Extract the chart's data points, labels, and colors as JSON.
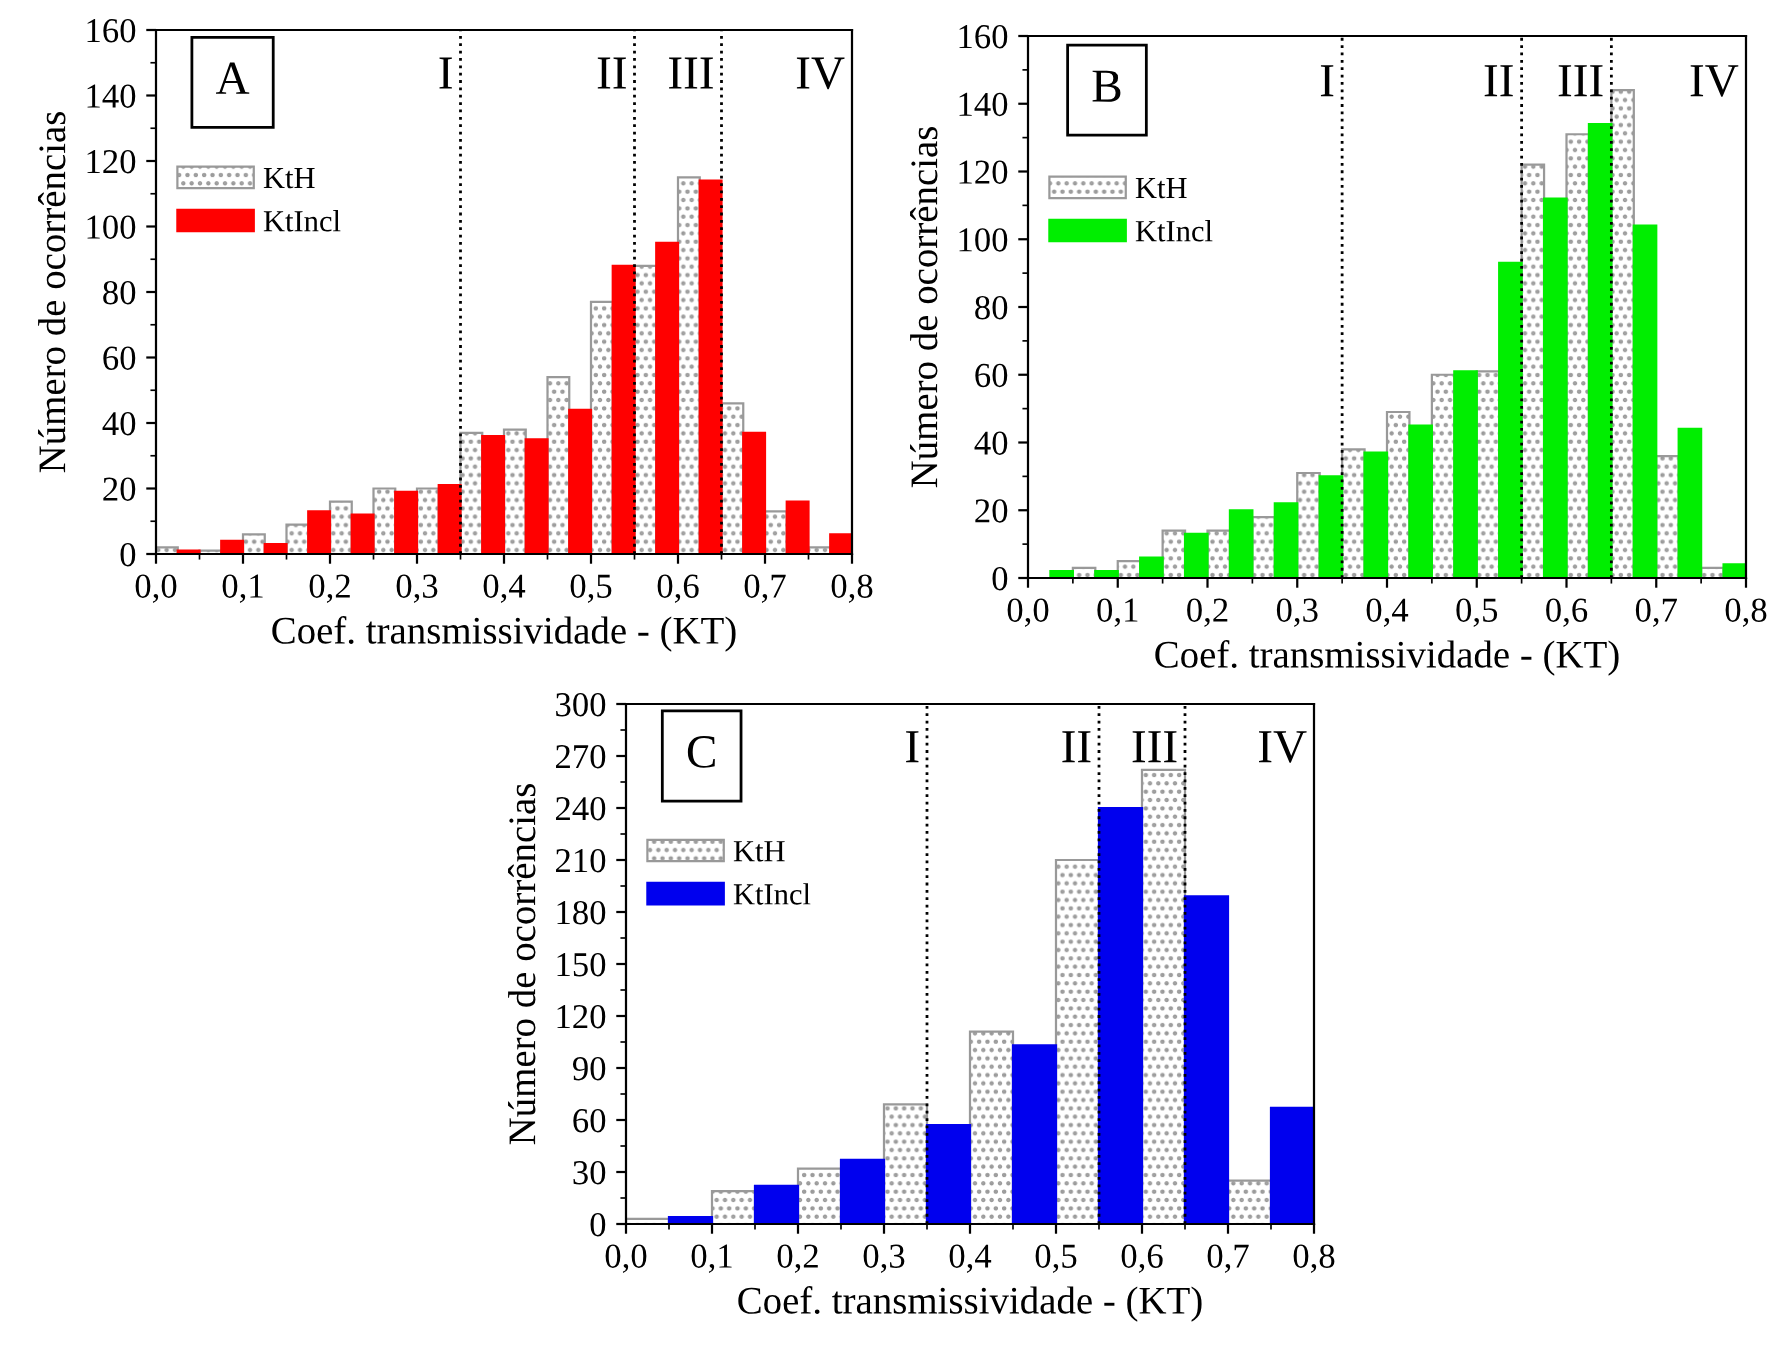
{
  "chart_data": [
    {
      "type": "bar",
      "title": "A",
      "xlabel": "Coef. transmissividade - (KT)",
      "ylabel": "Número de ocorrências",
      "series": [
        {
          "name": "KtH",
          "color": "#999999",
          "x": [
            0.0125,
            0.0625,
            0.1125,
            0.1625,
            0.2125,
            0.2625,
            0.3125,
            0.3625,
            0.4125,
            0.4625,
            0.5125,
            0.5625,
            0.6125,
            0.6625,
            0.7125,
            0.7625
          ],
          "values": [
            2,
            1,
            6,
            9,
            16,
            20,
            20,
            37,
            38,
            54,
            77,
            88,
            115,
            46,
            13,
            2
          ]
        },
        {
          "name": "KtIncl",
          "color": "#ff0000",
          "x": [
            0.0375,
            0.0875,
            0.1375,
            0.1875,
            0.2375,
            0.2875,
            0.3375,
            0.3875,
            0.4375,
            0.4875,
            0.5375,
            0.5875,
            0.6375,
            0.6875,
            0.7375,
            0.7875
          ],
          "values": [
            1,
            4,
            3,
            13,
            12,
            19,
            21,
            36,
            35,
            44,
            88,
            95,
            114,
            37,
            16,
            6
          ]
        }
      ],
      "xlim": [
        0,
        0.8
      ],
      "xticks": [
        {
          "value": 0,
          "label": "0,0"
        },
        {
          "value": 0.1,
          "label": "0,1"
        },
        {
          "value": 0.2,
          "label": "0,2"
        },
        {
          "value": 0.3,
          "label": "0,3"
        },
        {
          "value": 0.4,
          "label": "0,4"
        },
        {
          "value": 0.5,
          "label": "0,5"
        },
        {
          "value": 0.6,
          "label": "0,6"
        },
        {
          "value": 0.7,
          "label": "0,7"
        },
        {
          "value": 0.8,
          "label": "0,8"
        }
      ],
      "ylim": [
        0,
        160
      ],
      "yticks": [
        0,
        20,
        40,
        60,
        80,
        100,
        120,
        140,
        160
      ],
      "ref_lines": [
        {
          "axis": "x",
          "value": 0.35,
          "line_style": "dotted",
          "color": "#000000"
        },
        {
          "axis": "x",
          "value": 0.55,
          "line_style": "dotted",
          "color": "#000000"
        },
        {
          "axis": "x",
          "value": 0.65,
          "line_style": "dotted",
          "color": "#000000"
        }
      ],
      "annotations": [
        "I",
        "II",
        "III",
        "IV"
      ],
      "legend": "top left"
    },
    {
      "type": "bar",
      "title": "B",
      "xlabel": "Coef. transmissividade - (KT)",
      "ylabel": "Número de ocorrências",
      "series": [
        {
          "name": "KtH",
          "color": "#999999",
          "x": [
            0.0125,
            0.0625,
            0.1125,
            0.1625,
            0.2125,
            0.2625,
            0.3125,
            0.3625,
            0.4125,
            0.4625,
            0.5125,
            0.5625,
            0.6125,
            0.6625,
            0.7125,
            0.7625
          ],
          "values": [
            0,
            3,
            5,
            14,
            14,
            18,
            31,
            38,
            49,
            60,
            61,
            122,
            131,
            144,
            36,
            3
          ]
        },
        {
          "name": "KtIncl",
          "color": "#00ee00",
          "x": [
            0.0375,
            0.0875,
            0.1375,
            0.1875,
            0.2375,
            0.2875,
            0.3375,
            0.3875,
            0.4375,
            0.4875,
            0.5375,
            0.5875,
            0.6375,
            0.6875,
            0.7375,
            0.7875
          ],
          "values": [
            2,
            2,
            6,
            13,
            20,
            22,
            30,
            37,
            45,
            61,
            93,
            112,
            134,
            104,
            44,
            4
          ]
        }
      ],
      "xlim": [
        0,
        0.8
      ],
      "xticks": [
        {
          "value": 0,
          "label": "0,0"
        },
        {
          "value": 0.1,
          "label": "0,1"
        },
        {
          "value": 0.2,
          "label": "0,2"
        },
        {
          "value": 0.3,
          "label": "0,3"
        },
        {
          "value": 0.4,
          "label": "0,4"
        },
        {
          "value": 0.5,
          "label": "0,5"
        },
        {
          "value": 0.6,
          "label": "0,6"
        },
        {
          "value": 0.7,
          "label": "0,7"
        },
        {
          "value": 0.8,
          "label": "0,8"
        }
      ],
      "ylim": [
        0,
        160
      ],
      "yticks": [
        0,
        20,
        40,
        60,
        80,
        100,
        120,
        140,
        160
      ],
      "ref_lines": [
        {
          "axis": "x",
          "value": 0.35,
          "line_style": "dotted",
          "color": "#000000"
        },
        {
          "axis": "x",
          "value": 0.55,
          "line_style": "dotted",
          "color": "#000000"
        },
        {
          "axis": "x",
          "value": 0.65,
          "line_style": "dotted",
          "color": "#000000"
        }
      ],
      "annotations": [
        "I",
        "II",
        "III",
        "IV"
      ],
      "legend": "top left"
    },
    {
      "type": "bar",
      "title": "C",
      "xlabel": "Coef. transmissividade - (KT)",
      "ylabel": "Número de ocorrências",
      "series": [
        {
          "name": "KtH",
          "color": "#999999",
          "x": [
            0.025,
            0.125,
            0.225,
            0.325,
            0.425,
            0.525,
            0.625,
            0.725
          ],
          "values": [
            3,
            19,
            32,
            69,
            111,
            210,
            262,
            25
          ]
        },
        {
          "name": "KtIncl",
          "color": "#0000ee",
          "x": [
            0.075,
            0.175,
            0.275,
            0.375,
            0.475,
            0.575,
            0.675,
            0.775
          ],
          "values": [
            4,
            22,
            37,
            57,
            103,
            240,
            189,
            67
          ]
        }
      ],
      "xlim": [
        0,
        0.8
      ],
      "xticks": [
        {
          "value": 0,
          "label": "0,0"
        },
        {
          "value": 0.1,
          "label": "0,1"
        },
        {
          "value": 0.2,
          "label": "0,2"
        },
        {
          "value": 0.3,
          "label": "0,3"
        },
        {
          "value": 0.4,
          "label": "0,4"
        },
        {
          "value": 0.5,
          "label": "0,5"
        },
        {
          "value": 0.6,
          "label": "0,6"
        },
        {
          "value": 0.7,
          "label": "0,7"
        },
        {
          "value": 0.8,
          "label": "0,8"
        }
      ],
      "ylim": [
        0,
        300
      ],
      "yticks": [
        0,
        30,
        60,
        90,
        120,
        150,
        180,
        210,
        240,
        270,
        300
      ],
      "ref_lines": [
        {
          "axis": "x",
          "value": 0.35,
          "line_style": "dotted",
          "color": "#000000"
        },
        {
          "axis": "x",
          "value": 0.55,
          "line_style": "dotted",
          "color": "#000000"
        },
        {
          "axis": "x",
          "value": 0.65,
          "line_style": "dotted",
          "color": "#000000"
        }
      ],
      "annotations": [
        "I",
        "II",
        "III",
        "IV"
      ],
      "legend": "top left"
    }
  ]
}
